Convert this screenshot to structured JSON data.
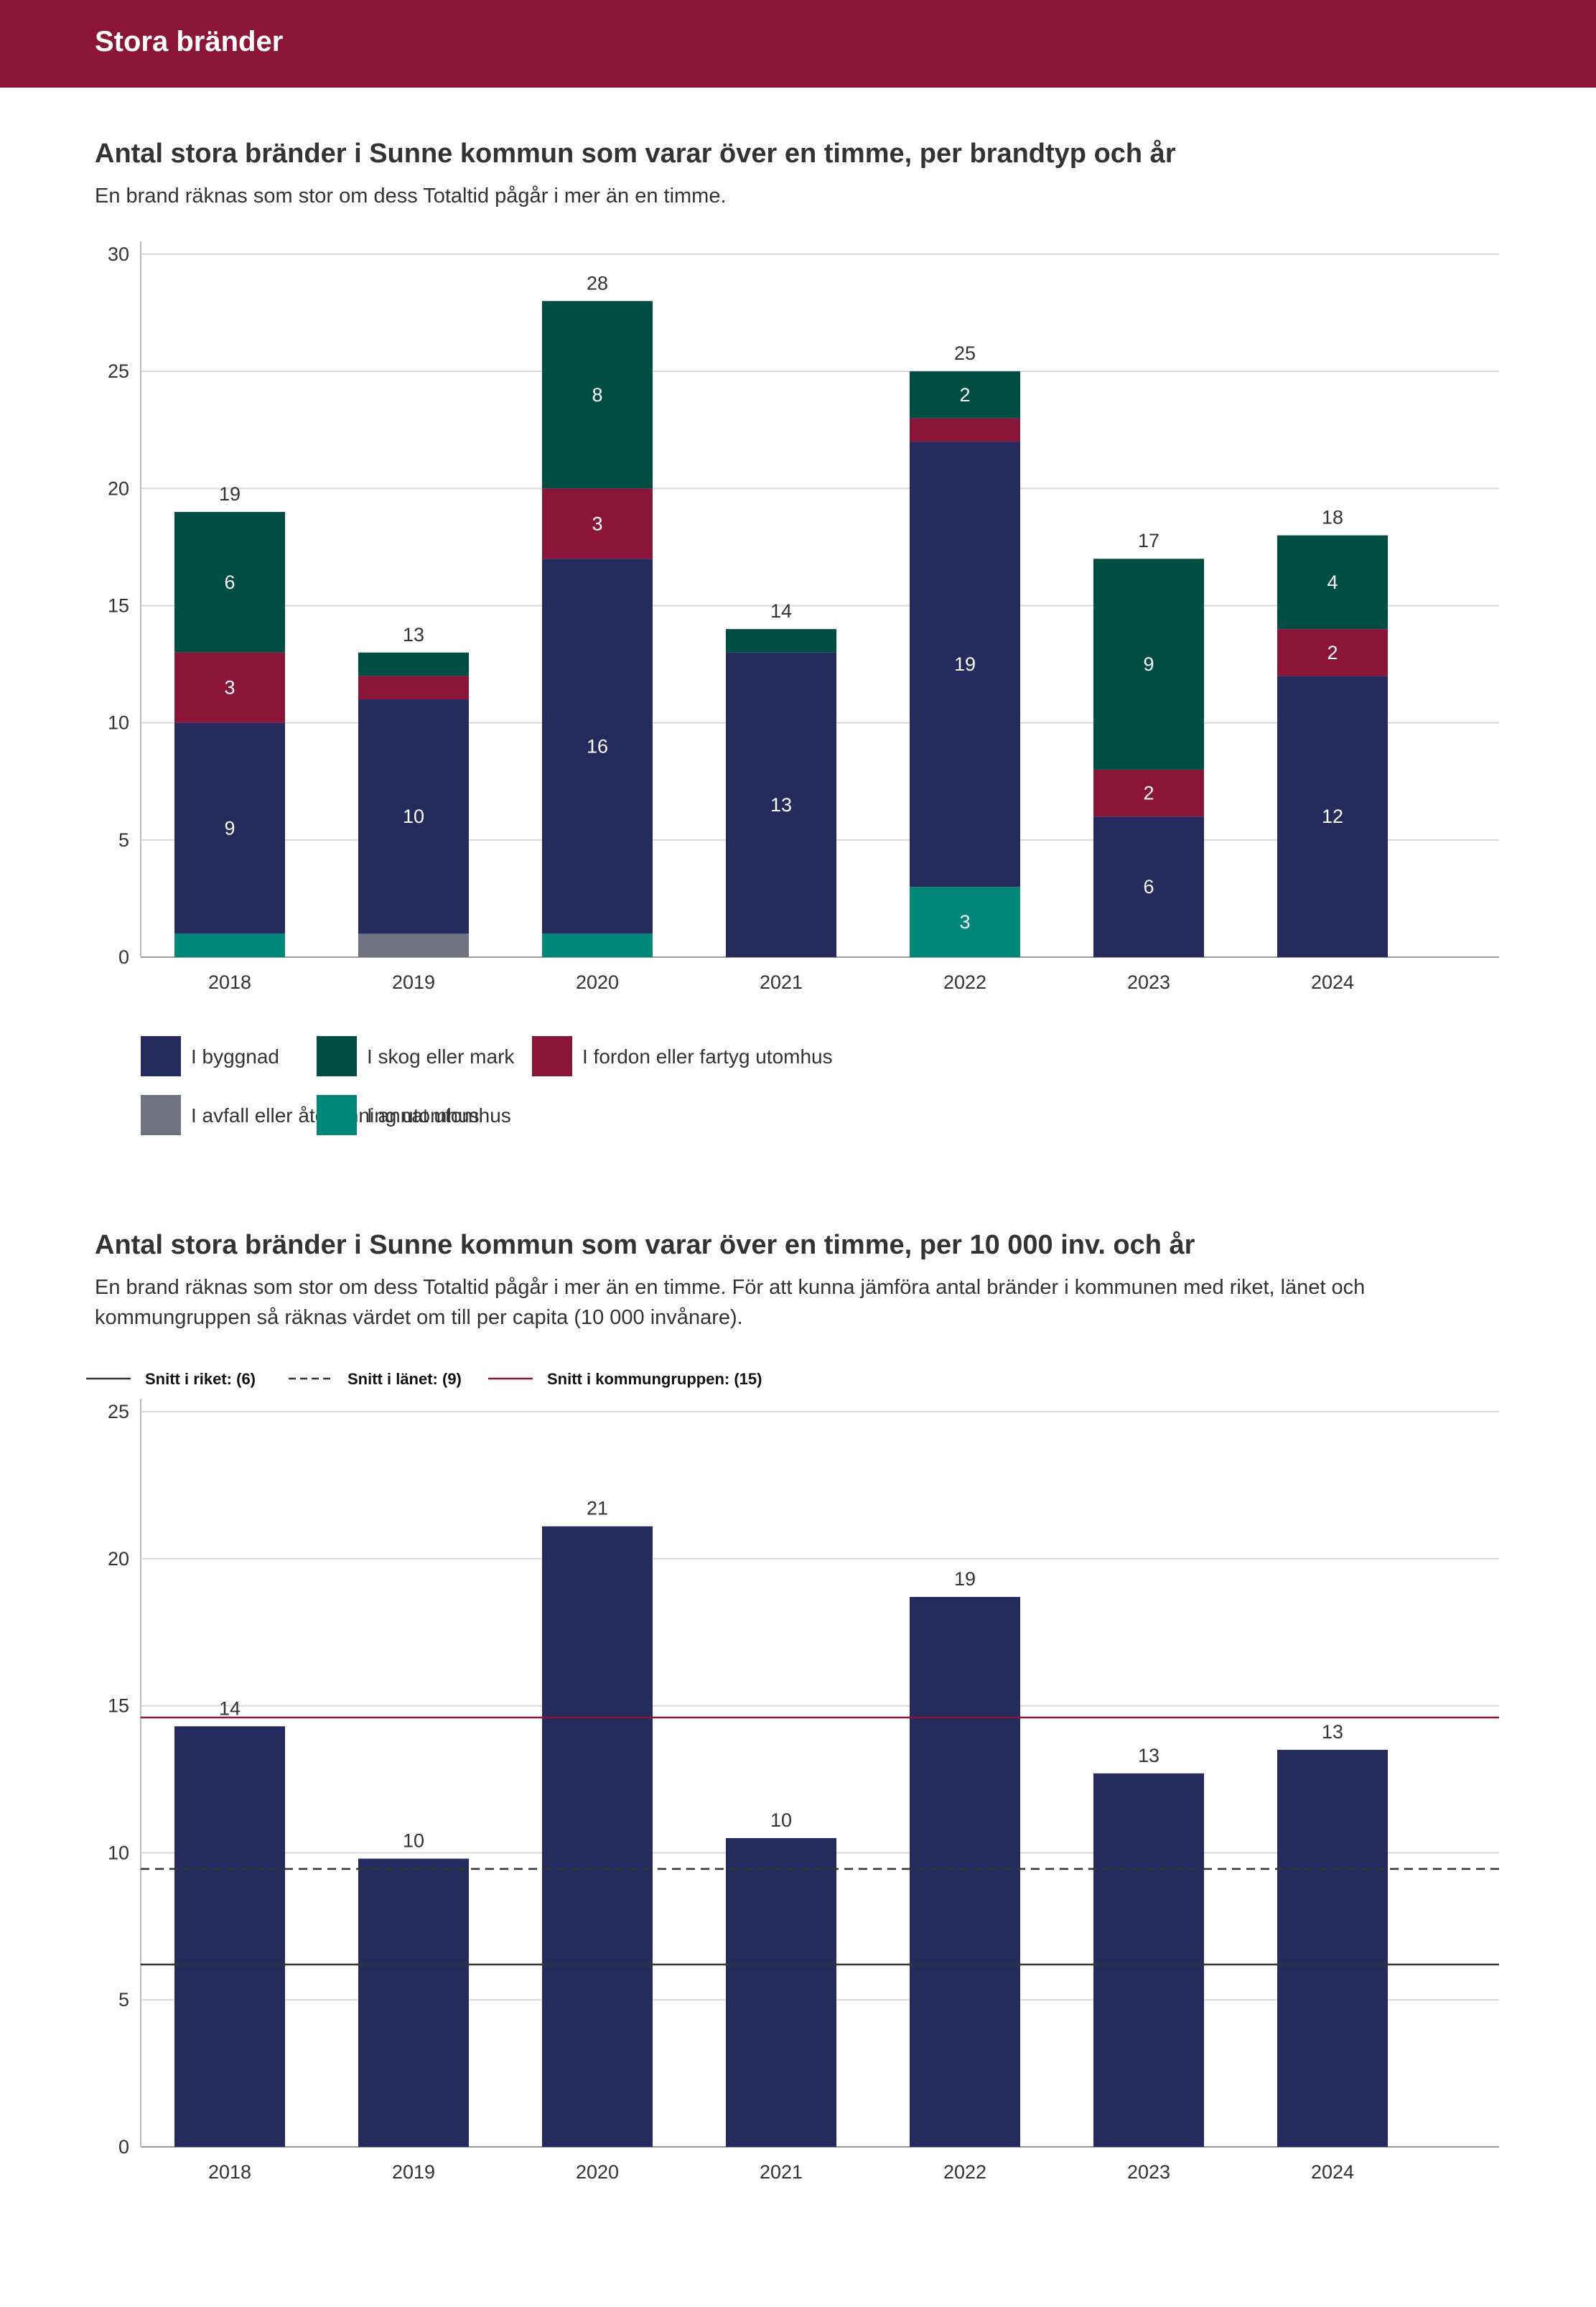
{
  "header": {
    "title": "Stora bränder"
  },
  "chart_data": [
    {
      "type": "bar",
      "stacked": true,
      "title": "Antal stora bränder i Sunne kommun som varar över en timme, per brandtyp och år",
      "subtitle": "En brand räknas som stor om dess Totaltid pågår i mer än en timme.",
      "categories": [
        "2018",
        "2019",
        "2020",
        "2021",
        "2022",
        "2023",
        "2024"
      ],
      "ylim": [
        0,
        30
      ],
      "yticks": [
        0,
        5,
        10,
        15,
        20,
        25,
        30
      ],
      "grid": true,
      "legend_position": "bottom",
      "series": [
        {
          "name": "I annat utomhus",
          "color": "#00877a",
          "values": [
            1,
            0,
            1,
            0,
            3,
            0,
            0
          ]
        },
        {
          "name": "I avfall eller återvinning utomhus",
          "color": "#6e737f",
          "values": [
            0,
            1,
            0,
            0,
            0,
            0,
            0
          ]
        },
        {
          "name": "I byggnad",
          "color": "#252b5c",
          "values": [
            9,
            10,
            16,
            13,
            19,
            6,
            12
          ]
        },
        {
          "name": "I fordon eller fartyg utomhus",
          "color": "#8b1538",
          "values": [
            3,
            1,
            3,
            0,
            1,
            2,
            2
          ]
        },
        {
          "name": "I skog eller mark",
          "color": "#004d44",
          "values": [
            6,
            1,
            8,
            1,
            2,
            9,
            4
          ]
        }
      ],
      "segment_labels": [
        [
          "",
          "",
          "9",
          "3",
          "6"
        ],
        [
          "",
          "",
          "10",
          "",
          ""
        ],
        [
          "",
          "",
          "16",
          "3",
          "8"
        ],
        [
          "",
          "",
          "13",
          "",
          ""
        ],
        [
          "3",
          "",
          "19",
          "",
          "2"
        ],
        [
          "",
          "",
          "6",
          "2",
          "9"
        ],
        [
          "",
          "",
          "12",
          "2",
          "4"
        ]
      ],
      "totals": [
        19,
        13,
        28,
        14,
        25,
        17,
        18
      ],
      "legend": [
        [
          "I byggnad",
          "I skog eller mark",
          "I fordon eller fartyg utomhus"
        ],
        [
          "I avfall eller återvinning utomhus",
          "I annat utomhus"
        ]
      ]
    },
    {
      "type": "bar",
      "title": "Antal stora bränder i Sunne kommun som varar över en timme, per 10 000 inv. och år",
      "subtitle": "En brand räknas som stor om dess Totaltid pågår i mer än en timme. För att kunna jämföra antal bränder i kommunen med riket, länet och kommungruppen så räknas värdet om till per capita (10 000 invånare).",
      "categories": [
        "2018",
        "2019",
        "2020",
        "2021",
        "2022",
        "2023",
        "2024"
      ],
      "values": [
        14.3,
        9.8,
        21.1,
        10.5,
        18.7,
        12.7,
        13.5
      ],
      "value_labels": [
        "14",
        "10",
        "21",
        "10",
        "19",
        "13",
        "13"
      ],
      "color": "#252b5c",
      "ylim": [
        0,
        25
      ],
      "yticks": [
        0,
        5,
        10,
        15,
        20,
        25
      ],
      "grid": true,
      "reference_lines": [
        {
          "label": "Snitt i riket: (6)",
          "value": 6.2,
          "style": "solid",
          "color": "#333333"
        },
        {
          "label": "Snitt i länet: (9)",
          "value": 9.45,
          "style": "dashed",
          "color": "#333333"
        },
        {
          "label": "Snitt i kommungruppen: (15)",
          "value": 14.6,
          "style": "solid",
          "color": "#8b1538"
        }
      ]
    }
  ]
}
